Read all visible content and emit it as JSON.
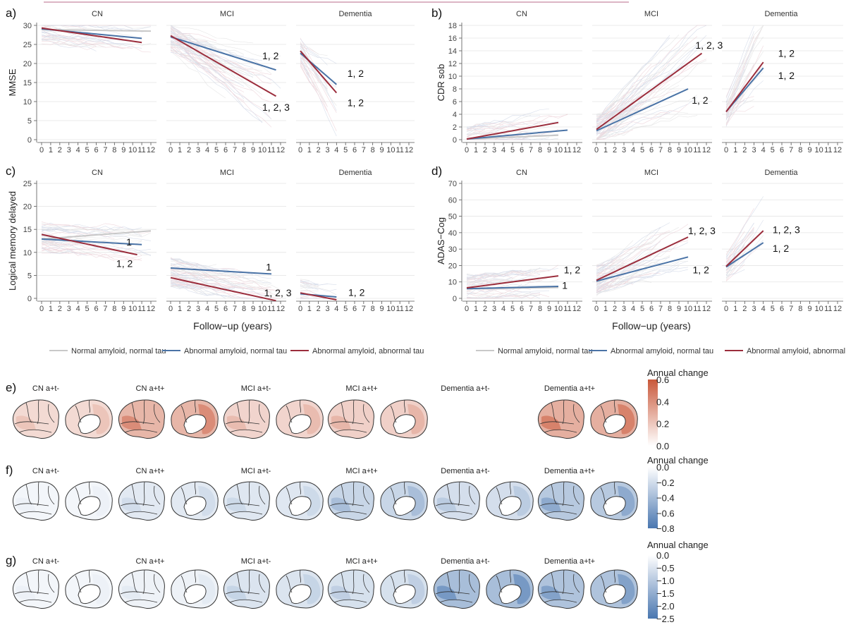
{
  "figure": {
    "x_axis_title": "Follow−up (years)",
    "x_ticks": [
      "0",
      "1",
      "2",
      "3",
      "4",
      "5",
      "6",
      "7",
      "8",
      "9",
      "10",
      "11",
      "12"
    ],
    "facets": [
      "CN",
      "MCI",
      "Dementia"
    ],
    "legend_items": [
      {
        "label": "Normal amyloid, normal tau",
        "color": "#c8c8c8"
      },
      {
        "label": "Abnormal amyloid, normal tau",
        "color": "#4a73a6"
      },
      {
        "label": "Abnormal amyloid, abnormal tau",
        "color": "#9b2d3c"
      }
    ]
  },
  "chart_data": [
    {
      "type": "line",
      "panel_label": "a)",
      "ylabel": "MMSE",
      "ylim": [
        0,
        30
      ],
      "yticks": [
        0,
        5,
        10,
        15,
        20,
        25,
        30
      ],
      "xlim": [
        0,
        12
      ],
      "facets": [
        {
          "name": "CN",
          "series": [
            {
              "group": "normal",
              "x": [
                0,
                12
              ],
              "y": [
                28.9,
                28.5
              ]
            },
            {
              "group": "abn_amyloid",
              "x": [
                0,
                11
              ],
              "y": [
                29.1,
                26.6
              ]
            },
            {
              "group": "abn_both",
              "x": [
                0,
                11
              ],
              "y": [
                29.3,
                25.5
              ]
            }
          ],
          "annotations": []
        },
        {
          "name": "MCI",
          "series": [
            {
              "group": "abn_amyloid",
              "x": [
                0,
                11.5
              ],
              "y": [
                27.0,
                18.3
              ]
            },
            {
              "group": "abn_both",
              "x": [
                0,
                11.5
              ],
              "y": [
                27.3,
                11.4
              ]
            }
          ],
          "annotations": [
            {
              "text": "1, 2",
              "x": 10,
              "y": 22
            },
            {
              "text": "1, 2, 3",
              "x": 10,
              "y": 8.5
            }
          ]
        },
        {
          "name": "Dementia",
          "series": [
            {
              "group": "abn_amyloid",
              "x": [
                0,
                4
              ],
              "y": [
                22.7,
                14.5
              ]
            },
            {
              "group": "abn_both",
              "x": [
                0,
                4
              ],
              "y": [
                23.3,
                12.3
              ]
            }
          ],
          "annotations": [
            {
              "text": "1, 2",
              "x": 5.2,
              "y": 17.4
            },
            {
              "text": "1, 2",
              "x": 5.2,
              "y": 9.7
            }
          ]
        }
      ]
    },
    {
      "type": "line",
      "panel_label": "b)",
      "ylabel": "CDR sob",
      "ylim": [
        0,
        18
      ],
      "yticks": [
        0,
        2,
        4,
        6,
        8,
        10,
        12,
        14,
        16,
        18
      ],
      "xlim": [
        0,
        12
      ],
      "facets": [
        {
          "name": "CN",
          "series": [
            {
              "group": "normal",
              "x": [
                0,
                10
              ],
              "y": [
                0.1,
                0.7
              ]
            },
            {
              "group": "abn_amyloid",
              "x": [
                0,
                11
              ],
              "y": [
                0.1,
                1.5
              ]
            },
            {
              "group": "abn_both",
              "x": [
                0,
                10
              ],
              "y": [
                0.1,
                2.7
              ]
            }
          ],
          "annotations": []
        },
        {
          "name": "MCI",
          "series": [
            {
              "group": "abn_amyloid",
              "x": [
                0,
                10
              ],
              "y": [
                1.4,
                8.0
              ]
            },
            {
              "group": "abn_both",
              "x": [
                0,
                11.5
              ],
              "y": [
                1.6,
                13.6
              ]
            }
          ],
          "annotations": [
            {
              "text": "1, 2, 3",
              "x": 10.8,
              "y": 14.9
            },
            {
              "text": "1, 2",
              "x": 10.4,
              "y": 6.2
            }
          ]
        },
        {
          "name": "Dementia",
          "series": [
            {
              "group": "abn_amyloid",
              "x": [
                0,
                4
              ],
              "y": [
                4.4,
                11.3
              ]
            },
            {
              "group": "abn_both",
              "x": [
                0,
                4
              ],
              "y": [
                4.4,
                12.2
              ]
            }
          ],
          "annotations": [
            {
              "text": "1, 2",
              "x": 5.6,
              "y": 13.6
            },
            {
              "text": "1, 2",
              "x": 5.6,
              "y": 10.1
            }
          ]
        }
      ]
    },
    {
      "type": "line",
      "panel_label": "c)",
      "ylabel": "Logical memory delayed",
      "ylim": [
        0,
        25
      ],
      "yticks": [
        0,
        5,
        10,
        15,
        20,
        25
      ],
      "xlim": [
        0,
        12
      ],
      "facets": [
        {
          "name": "CN",
          "series": [
            {
              "group": "normal",
              "x": [
                0,
                12
              ],
              "y": [
                12.9,
                14.7
              ]
            },
            {
              "group": "abn_amyloid",
              "x": [
                0,
                11
              ],
              "y": [
                12.9,
                11.7
              ]
            },
            {
              "group": "abn_both",
              "x": [
                0,
                10.5
              ],
              "y": [
                13.9,
                9.5
              ]
            }
          ],
          "annotations": [
            {
              "text": "1",
              "x": 9.3,
              "y": 12.3
            },
            {
              "text": "1, 2",
              "x": 8.2,
              "y": 7.6
            }
          ]
        },
        {
          "name": "MCI",
          "series": [
            {
              "group": "abn_amyloid",
              "x": [
                0,
                11
              ],
              "y": [
                6.6,
                5.3
              ]
            },
            {
              "group": "abn_both",
              "x": [
                0,
                11.5
              ],
              "y": [
                4.5,
                -0.5
              ]
            }
          ],
          "annotations": [
            {
              "text": "1",
              "x": 10.4,
              "y": 6.8
            },
            {
              "text": "1, 2, 3",
              "x": 10.2,
              "y": 1.2
            }
          ]
        },
        {
          "name": "Dementia",
          "series": [
            {
              "group": "abn_amyloid",
              "x": [
                0,
                4
              ],
              "y": [
                1.0,
                0.3
              ]
            },
            {
              "group": "abn_both",
              "x": [
                0,
                4
              ],
              "y": [
                1.2,
                -0.3
              ]
            }
          ],
          "annotations": [
            {
              "text": "1, 2",
              "x": 5.3,
              "y": 1.3
            }
          ]
        }
      ]
    },
    {
      "type": "line",
      "panel_label": "d)",
      "ylabel": "ADAS−Cog",
      "ylim": [
        0,
        70
      ],
      "yticks": [
        0,
        10,
        20,
        30,
        40,
        50,
        60,
        70
      ],
      "xlim": [
        0,
        12
      ],
      "facets": [
        {
          "name": "CN",
          "series": [
            {
              "group": "normal",
              "x": [
                0,
                10
              ],
              "y": [
                5.8,
                6.6
              ]
            },
            {
              "group": "abn_amyloid",
              "x": [
                0,
                10
              ],
              "y": [
                5.9,
                7.3
              ]
            },
            {
              "group": "abn_both",
              "x": [
                0,
                10
              ],
              "y": [
                6.4,
                13.7
              ]
            }
          ],
          "annotations": [
            {
              "text": "1, 2",
              "x": 10.6,
              "y": 17.3
            },
            {
              "text": "1",
              "x": 10.4,
              "y": 8.0
            }
          ]
        },
        {
          "name": "MCI",
          "series": [
            {
              "group": "abn_amyloid",
              "x": [
                0,
                10
              ],
              "y": [
                10.5,
                25.2
              ]
            },
            {
              "group": "abn_both",
              "x": [
                0,
                10
              ],
              "y": [
                11.0,
                37.3
              ]
            }
          ],
          "annotations": [
            {
              "text": "1, 2, 3",
              "x": 10,
              "y": 41.3
            },
            {
              "text": "1, 2",
              "x": 10.5,
              "y": 17.5
            }
          ]
        },
        {
          "name": "Dementia",
          "series": [
            {
              "group": "abn_amyloid",
              "x": [
                0,
                4
              ],
              "y": [
                19.1,
                33.9
              ]
            },
            {
              "group": "abn_both",
              "x": [
                0,
                4
              ],
              "y": [
                19.5,
                41.2
              ]
            }
          ],
          "annotations": [
            {
              "text": "1, 2, 3",
              "x": 5.0,
              "y": 41.9
            },
            {
              "text": "1, 2",
              "x": 5.0,
              "y": 30.5
            }
          ]
        }
      ]
    },
    {
      "type": "heatmap",
      "panel_label": "e)",
      "title": "Annual change",
      "colorbar_ticks": [
        "0.6",
        "0.4",
        "0.2",
        "0.0"
      ],
      "colors": {
        "high": "#c9583a",
        "low": "#ffffff"
      },
      "groups": [
        {
          "label": "CN a+t-",
          "intensity": 0.28
        },
        {
          "label": "CN a+t+",
          "intensity": 0.55
        },
        {
          "label": "MCI a+t-",
          "intensity": 0.32
        },
        {
          "label": "MCI a+t+",
          "intensity": 0.35
        },
        {
          "label": "Dementia a+t-",
          "intensity": null
        },
        {
          "label": "Dementia a+t+",
          "intensity": 0.6
        }
      ]
    },
    {
      "type": "heatmap",
      "panel_label": "f)",
      "title": "Annual change",
      "colorbar_ticks": [
        "0.0",
        "−0.2",
        "−0.4",
        "−0.6",
        "−0.8"
      ],
      "colors": {
        "high": "#ffffff",
        "low": "#4a77b0"
      },
      "groups": [
        {
          "label": "CN a+t-",
          "intensity": 0.08
        },
        {
          "label": "CN a+t+",
          "intensity": 0.2
        },
        {
          "label": "MCI a+t-",
          "intensity": 0.22
        },
        {
          "label": "MCI a+t+",
          "intensity": 0.38
        },
        {
          "label": "Dementia a+t-",
          "intensity": 0.3
        },
        {
          "label": "Dementia a+t+",
          "intensity": 0.5
        }
      ]
    },
    {
      "type": "heatmap",
      "panel_label": "g)",
      "title": "Annual change",
      "colorbar_ticks": [
        "0.0",
        "−0.5",
        "−1.0",
        "−1.5",
        "−2.0",
        "−2.5"
      ],
      "colors": {
        "high": "#ffffff",
        "low": "#4a77b0"
      },
      "groups": [
        {
          "label": "CN a+t-",
          "intensity": 0.08
        },
        {
          "label": "CN a+t+",
          "intensity": 0.12
        },
        {
          "label": "MCI a+t-",
          "intensity": 0.25
        },
        {
          "label": "MCI a+t+",
          "intensity": 0.28
        },
        {
          "label": "Dementia a+t-",
          "intensity": 0.6
        },
        {
          "label": "Dementia a+t+",
          "intensity": 0.55
        }
      ]
    }
  ]
}
